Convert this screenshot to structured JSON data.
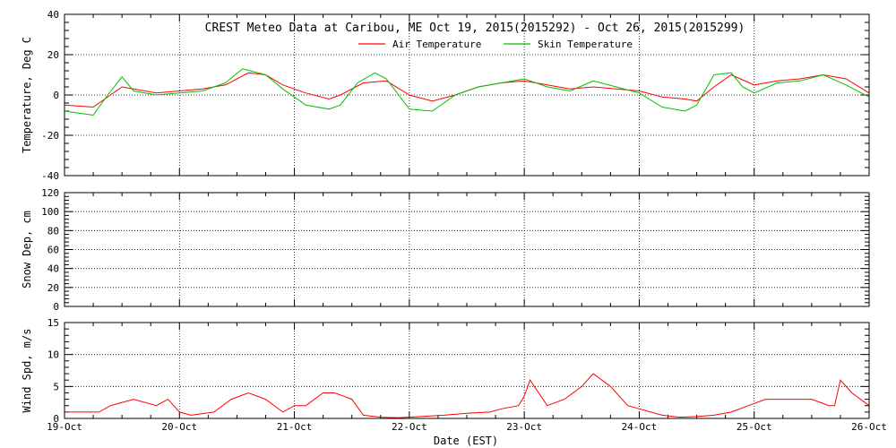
{
  "title": "CREST Meteo Data at Caribou, ME   Oct 19, 2015(2015292) - Oct 26, 2015(2015299)",
  "xlabel": "Date (EST)",
  "x_ticks": [
    "19-Oct",
    "20-Oct",
    "21-Oct",
    "22-Oct",
    "23-Oct",
    "24-Oct",
    "25-Oct",
    "26-Oct"
  ],
  "colors": {
    "air": "#ff0000",
    "skin": "#00c000",
    "wind": "#ff0000",
    "axis": "#000000"
  },
  "chart_data": [
    {
      "type": "line",
      "ylabel": "Temperature, Deg C",
      "xlim": [
        0,
        7
      ],
      "ylim": [
        -40,
        40
      ],
      "yticks": [
        -40,
        -20,
        0,
        20,
        40
      ],
      "grid": true,
      "legend": "top-center",
      "series": [
        {
          "name": "Air Temperature",
          "x": [
            0,
            0.25,
            0.35,
            0.5,
            0.6,
            0.8,
            1.0,
            1.2,
            1.4,
            1.6,
            1.75,
            1.9,
            2.1,
            2.3,
            2.4,
            2.6,
            2.8,
            3.0,
            3.2,
            3.4,
            3.6,
            3.8,
            4.0,
            4.2,
            4.4,
            4.6,
            4.8,
            5.0,
            5.2,
            5.4,
            5.5,
            5.65,
            5.8,
            6.0,
            6.2,
            6.4,
            6.6,
            6.8,
            7.0
          ],
          "values": [
            -5,
            -6,
            -2,
            4,
            3,
            1,
            2,
            3,
            5,
            11,
            10,
            5,
            1,
            -2,
            0,
            6,
            7,
            0,
            -3,
            0,
            4,
            6,
            7,
            5,
            3,
            4,
            3,
            2,
            -1,
            -2,
            -3,
            4,
            10,
            5,
            7,
            8,
            10,
            8,
            1
          ]
        },
        {
          "name": "Skin Temperature",
          "x": [
            0,
            0.25,
            0.35,
            0.5,
            0.6,
            0.8,
            1.0,
            1.2,
            1.4,
            1.55,
            1.75,
            1.9,
            2.1,
            2.3,
            2.4,
            2.55,
            2.7,
            2.8,
            3.0,
            3.2,
            3.4,
            3.6,
            3.8,
            4.0,
            4.2,
            4.4,
            4.6,
            4.8,
            5.0,
            5.2,
            5.4,
            5.5,
            5.65,
            5.8,
            5.9,
            6.0,
            6.2,
            6.4,
            6.6,
            6.8,
            7.0
          ],
          "values": [
            -8,
            -10,
            -2,
            9,
            2,
            0,
            1,
            2,
            6,
            13,
            10,
            3,
            -5,
            -7,
            -5,
            6,
            11,
            8,
            -7,
            -8,
            0,
            4,
            6,
            8,
            4,
            2,
            7,
            4,
            1,
            -6,
            -8,
            -5,
            10,
            11,
            4,
            1,
            6,
            7,
            10,
            5,
            -1
          ]
        }
      ]
    },
    {
      "type": "line",
      "ylabel": "Snow Dep, cm",
      "xlim": [
        0,
        7
      ],
      "ylim": [
        0,
        120
      ],
      "yticks": [
        0,
        20,
        40,
        60,
        80,
        100,
        120
      ],
      "grid": true,
      "series": []
    },
    {
      "type": "line",
      "ylabel": "Wind Spd, m/s",
      "xlim": [
        0,
        7
      ],
      "ylim": [
        0,
        15
      ],
      "yticks": [
        0,
        5,
        10,
        15
      ],
      "grid": true,
      "series": [
        {
          "x": [
            0,
            0.3,
            0.4,
            0.6,
            0.8,
            0.9,
            1.0,
            1.1,
            1.3,
            1.45,
            1.6,
            1.75,
            1.9,
            2.0,
            2.1,
            2.25,
            2.35,
            2.5,
            2.6,
            2.75,
            2.9,
            3.1,
            3.3,
            3.5,
            3.7,
            3.8,
            3.95,
            4.0,
            4.05,
            4.2,
            4.35,
            4.5,
            4.6,
            4.75,
            4.9,
            5.0,
            5.1,
            5.2,
            5.35,
            5.5,
            5.65,
            5.8,
            5.95,
            6.1,
            6.3,
            6.5,
            6.65,
            6.7,
            6.75,
            6.85,
            7.0
          ],
          "values": [
            1,
            1,
            2,
            3,
            2,
            3,
            1,
            0.5,
            1,
            3,
            4,
            3,
            1,
            2,
            2,
            4,
            4,
            3,
            0.5,
            0.2,
            0.1,
            0.3,
            0.5,
            0.8,
            1,
            1.5,
            2,
            3.5,
            6,
            2,
            3,
            5,
            7,
            5,
            2,
            1.5,
            1,
            0.5,
            0.2,
            0.3,
            0.5,
            1,
            2,
            3,
            3,
            3,
            2,
            2,
            6,
            4,
            2
          ]
        }
      ]
    }
  ]
}
